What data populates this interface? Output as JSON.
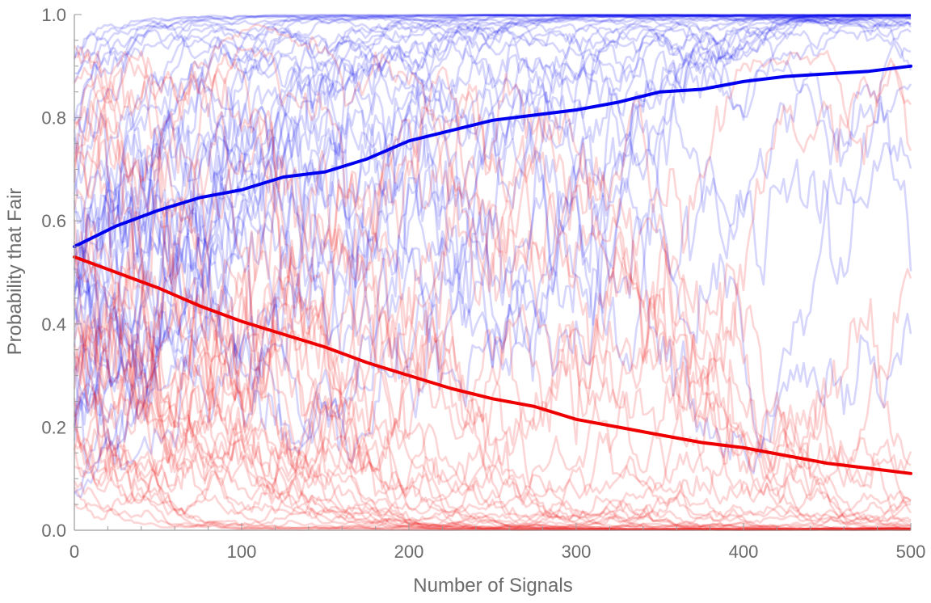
{
  "chart_data": {
    "type": "line",
    "title": "",
    "xlabel": "Number of Signals",
    "ylabel": "Probability that Fair",
    "xlim": [
      0,
      500
    ],
    "ylim": [
      0,
      1
    ],
    "x_ticks": [
      "0",
      "100",
      "200",
      "300",
      "400",
      "500"
    ],
    "y_ticks": [
      "0.0",
      "0.2",
      "0.4",
      "0.6",
      "0.8",
      "1.0"
    ],
    "grid": false,
    "legend": "none",
    "colors": {
      "fair": "#0000ee",
      "unfair": "#ee0000",
      "axis": "#9a9a9a"
    },
    "series": [
      {
        "name": "mean-fair",
        "color": "#0000ee",
        "x": [
          0,
          25,
          50,
          75,
          100,
          125,
          150,
          175,
          200,
          225,
          250,
          275,
          300,
          325,
          350,
          375,
          400,
          425,
          450,
          475,
          500
        ],
        "values": [
          0.55,
          0.59,
          0.62,
          0.645,
          0.66,
          0.685,
          0.695,
          0.72,
          0.755,
          0.775,
          0.795,
          0.805,
          0.815,
          0.83,
          0.85,
          0.855,
          0.87,
          0.88,
          0.885,
          0.89,
          0.9
        ]
      },
      {
        "name": "mean-unfair",
        "color": "#ee0000",
        "x": [
          0,
          25,
          50,
          75,
          100,
          125,
          150,
          175,
          200,
          225,
          250,
          275,
          300,
          325,
          350,
          375,
          400,
          425,
          450,
          475,
          500
        ],
        "values": [
          0.53,
          0.5,
          0.47,
          0.435,
          0.405,
          0.38,
          0.355,
          0.325,
          0.3,
          0.275,
          0.255,
          0.24,
          0.215,
          0.2,
          0.185,
          0.17,
          0.16,
          0.145,
          0.13,
          0.12,
          0.11
        ]
      }
    ]
  }
}
